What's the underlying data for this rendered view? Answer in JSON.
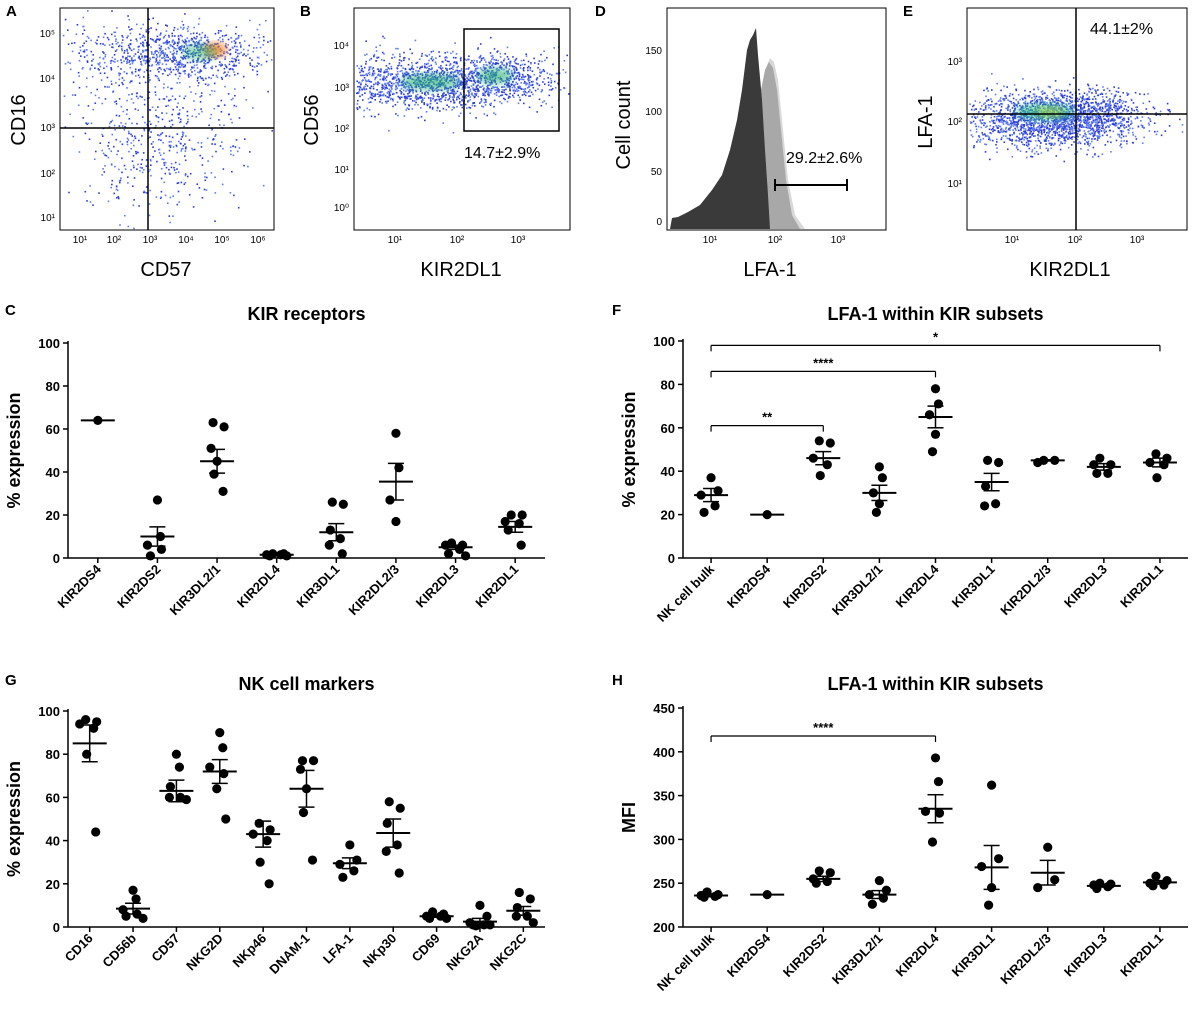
{
  "panels": {
    "A": {
      "label": "A",
      "xlabel": "CD57",
      "ylabel": "CD16",
      "xticks": [
        "10¹",
        "10²",
        "10³",
        "10⁴",
        "10⁵",
        "10⁶"
      ],
      "yticks": [
        "10⁵",
        "10⁴",
        "10³",
        "10²",
        "10¹"
      ]
    },
    "B": {
      "label": "B",
      "xlabel": "KIR2DL1",
      "ylabel": "CD56",
      "gate_text": "14.7±2.9%",
      "xticks": [
        "10¹",
        "10²",
        "10³"
      ],
      "yticks": [
        "10⁴",
        "10³",
        "10²",
        "10¹",
        "10⁰"
      ]
    },
    "D": {
      "label": "D",
      "xlabel": "LFA-1",
      "ylabel": "Cell count",
      "gate_text": "29.2±2.6%",
      "xticks": [
        "10¹",
        "10²",
        "10³"
      ],
      "yticks": [
        "150",
        "100",
        "50",
        "0"
      ]
    },
    "E": {
      "label": "E",
      "xlabel": "KIR2DL1",
      "ylabel": "LFA-1",
      "gate_text": "44.1±2%",
      "xticks": [
        "10¹",
        "10²",
        "10³"
      ],
      "yticks": [
        "10³",
        "10²",
        "10¹"
      ]
    }
  },
  "colors": {
    "point": "#000000",
    "line": "#000000",
    "hist_dark": "#3a3a3a",
    "hist_mid": "#a8a8a8",
    "hist_light": "#d8d8d8"
  },
  "chart_data": [
    {
      "id": "C",
      "label": "C",
      "type": "scatter",
      "title": "KIR receptors",
      "ylabel": "% expression",
      "ylim": [
        0,
        100
      ],
      "yticks": [
        0,
        20,
        40,
        60,
        80,
        100
      ],
      "categories": [
        "KIR2DS4",
        "KIR2DS2",
        "KIR3DL2/1",
        "KIR2DL4",
        "KIR3DL1",
        "KIR2DL2/3",
        "KIR2DL3",
        "KIR2DL1"
      ],
      "points": [
        [
          64
        ],
        [
          27,
          10,
          6,
          4,
          1
        ],
        [
          63,
          61,
          51,
          45,
          39,
          31
        ],
        [
          2,
          1.5,
          1,
          1,
          1.5,
          2
        ],
        [
          25,
          26,
          13,
          9,
          6,
          2
        ],
        [
          58,
          42,
          27,
          17
        ],
        [
          7,
          6,
          6,
          4,
          2,
          1
        ],
        [
          20,
          20,
          17,
          16,
          13,
          6
        ]
      ],
      "mean": [
        64,
        10,
        45,
        1.5,
        12,
        35.5,
        5,
        14.5
      ],
      "sem": [
        0,
        4.5,
        5.5,
        0.3,
        4,
        8.5,
        1,
        2.5
      ],
      "sig": []
    },
    {
      "id": "F",
      "label": "F",
      "type": "scatter",
      "title": "LFA-1 within KIR subsets",
      "ylabel": "% expression",
      "ylim": [
        0,
        100
      ],
      "yticks": [
        0,
        20,
        40,
        60,
        80,
        100
      ],
      "categories": [
        "NK cell bulk",
        "KIR2DS4",
        "KIR2DS2",
        "KIR3DL2/1",
        "KIR2DL4",
        "KIR3DL1",
        "KIR2DL2/3",
        "KIR2DL3",
        "KIR2DL1"
      ],
      "points": [
        [
          37,
          31,
          29,
          24,
          21
        ],
        [
          20
        ],
        [
          54,
          53,
          46,
          43,
          38
        ],
        [
          42,
          37,
          30,
          25,
          21
        ],
        [
          78,
          71,
          66,
          57,
          49
        ],
        [
          45,
          44,
          33,
          25,
          24
        ],
        [
          45,
          45,
          44
        ],
        [
          46,
          43,
          43,
          39,
          39
        ],
        [
          48,
          46,
          44,
          43,
          37
        ]
      ],
      "mean": [
        29,
        20,
        46,
        30,
        65,
        35,
        45,
        42,
        44
      ],
      "sem": [
        3,
        0,
        3,
        3.5,
        5,
        4,
        0.3,
        1.5,
        2
      ],
      "sig": [
        {
          "from": 0,
          "to": 8,
          "y": 98,
          "text": "*"
        },
        {
          "from": 0,
          "to": 4,
          "y": 86,
          "text": "****"
        },
        {
          "from": 0,
          "to": 2,
          "y": 61,
          "text": "**"
        }
      ]
    },
    {
      "id": "G",
      "label": "G",
      "type": "scatter",
      "title": "NK cell markers",
      "ylabel": "% expression",
      "ylim": [
        0,
        100
      ],
      "yticks": [
        0,
        20,
        40,
        60,
        80,
        100
      ],
      "categories": [
        "CD16",
        "CD56b",
        "CD57",
        "NKG2D",
        "NKp46",
        "DNAM-1",
        "LFA-1",
        "NKp30",
        "CD69",
        "NKG2A",
        "NKG2C"
      ],
      "points": [
        [
          96,
          95,
          94,
          92,
          80,
          44
        ],
        [
          17,
          13,
          8,
          6,
          5,
          4
        ],
        [
          80,
          74,
          65,
          60,
          60,
          59
        ],
        [
          90,
          83,
          74,
          71,
          64,
          50
        ],
        [
          48,
          45,
          43,
          40,
          30,
          20
        ],
        [
          77,
          77,
          73,
          64,
          53,
          31
        ],
        [
          38,
          31,
          29,
          26,
          23
        ],
        [
          58,
          55,
          48,
          38,
          35,
          25
        ],
        [
          7,
          6,
          5,
          5,
          4,
          4
        ],
        [
          10,
          5,
          2,
          1,
          1,
          1,
          0.5
        ],
        [
          16,
          13,
          9,
          5,
          5,
          2
        ]
      ],
      "mean": [
        85,
        8.5,
        63,
        72,
        43,
        64,
        29.5,
        43.5,
        5,
        2.5,
        7.5
      ],
      "sem": [
        8.5,
        2.5,
        5,
        5.5,
        6,
        8.5,
        2.5,
        6.5,
        0.5,
        1.5,
        2
      ],
      "sig": []
    },
    {
      "id": "H",
      "label": "H",
      "type": "scatter",
      "title": "LFA-1 within KIR subsets",
      "ylabel": "MFI",
      "ylim": [
        200,
        450
      ],
      "yticks": [
        200,
        250,
        300,
        350,
        400,
        450
      ],
      "categories": [
        "NK cell bulk",
        "KIR2DS4",
        "KIR2DS2",
        "KIR3DL2/1",
        "KIR2DL4",
        "KIR3DL1",
        "KIR2DL2/3",
        "KIR2DL3",
        "KIR2DL1"
      ],
      "points": [
        [
          240,
          237,
          236,
          235,
          234
        ],
        [
          237
        ],
        [
          264,
          262,
          255,
          252,
          250
        ],
        [
          253,
          242,
          237,
          233,
          226
        ],
        [
          393,
          366,
          332,
          330,
          297
        ],
        [
          362,
          278,
          269,
          245,
          225
        ],
        [
          291,
          254,
          245
        ],
        [
          250,
          249,
          248,
          246,
          244
        ],
        [
          258,
          253,
          250,
          248,
          247
        ]
      ],
      "mean": [
        236,
        237,
        255,
        237,
        335,
        268,
        262,
        247,
        251
      ],
      "sem": [
        1.5,
        0,
        3,
        4.5,
        16,
        25,
        14,
        1.5,
        2
      ],
      "sig": [
        {
          "from": 0,
          "to": 4,
          "y": 418,
          "text": "****"
        }
      ]
    }
  ]
}
